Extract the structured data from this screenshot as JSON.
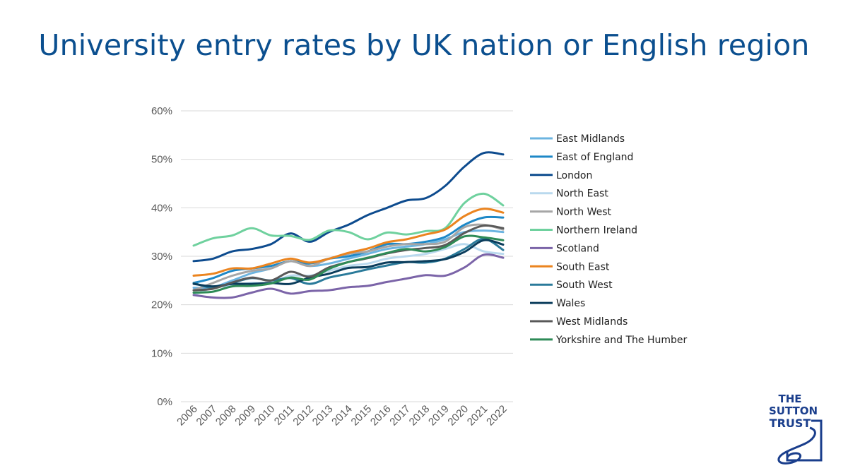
{
  "logo": {
    "line1": "THE",
    "line2": "SUTTON",
    "line3": "TRUST",
    "color": "#1a3e8c"
  },
  "chart_data": {
    "type": "line",
    "title": "University entry rates by UK nation or English region",
    "xlabel": "",
    "ylabel": "",
    "ylim": [
      0,
      60
    ],
    "yticks": [
      "0%",
      "10%",
      "20%",
      "30%",
      "40%",
      "50%",
      "60%"
    ],
    "grid": true,
    "legend_position": "right",
    "categories": [
      "2006",
      "2007",
      "2008",
      "2009",
      "2010",
      "2011",
      "2012",
      "2013",
      "2014",
      "2015",
      "2016",
      "2017",
      "2018",
      "2019",
      "2020",
      "2021",
      "2022"
    ],
    "series": [
      {
        "name": "East Midlands",
        "color": "#6cb4e0",
        "values": [
          23.5,
          23.6,
          25.0,
          26.5,
          27.5,
          29.0,
          28.0,
          28.5,
          29.5,
          30.5,
          31.5,
          32.0,
          32.5,
          33.5,
          35.0,
          35.3,
          35.0
        ]
      },
      {
        "name": "East of England",
        "color": "#1e88c7",
        "values": [
          24.5,
          25.5,
          27.0,
          27.5,
          28.0,
          29.0,
          28.5,
          29.5,
          30.0,
          31.0,
          32.5,
          32.5,
          33.0,
          34.0,
          36.5,
          38.0,
          38.0
        ]
      },
      {
        "name": "London",
        "color": "#0d4b8e",
        "values": [
          29.0,
          29.5,
          31.0,
          31.5,
          32.5,
          34.7,
          33.0,
          35.0,
          36.5,
          38.5,
          40.0,
          41.5,
          42.0,
          44.5,
          48.5,
          51.3,
          51.0
        ]
      },
      {
        "name": "North East",
        "color": "#b9d9ee",
        "values": [
          22.0,
          23.5,
          24.0,
          24.5,
          24.5,
          26.0,
          26.0,
          27.0,
          28.0,
          28.5,
          29.5,
          30.0,
          30.5,
          31.5,
          32.5,
          31.0,
          30.5
        ]
      },
      {
        "name": "North West",
        "color": "#a6a6a6",
        "values": [
          23.0,
          24.5,
          26.0,
          27.0,
          27.5,
          29.0,
          28.0,
          29.5,
          30.5,
          31.0,
          32.0,
          32.5,
          32.5,
          33.0,
          36.0,
          36.5,
          35.5
        ]
      },
      {
        "name": "Northern Ireland",
        "color": "#6fd19e",
        "values": [
          32.2,
          33.7,
          34.3,
          35.8,
          34.3,
          34.2,
          33.4,
          35.3,
          35.0,
          33.5,
          34.9,
          34.5,
          35.2,
          35.8,
          41.0,
          42.9,
          40.5
        ]
      },
      {
        "name": "Scotland",
        "color": "#7b64a8",
        "values": [
          22.0,
          21.5,
          21.5,
          22.5,
          23.3,
          22.3,
          22.8,
          23.0,
          23.6,
          23.9,
          24.7,
          25.4,
          26.1,
          26.0,
          27.7,
          30.3,
          29.7
        ]
      },
      {
        "name": "South East",
        "color": "#eb841f",
        "values": [
          26.0,
          26.4,
          27.5,
          27.5,
          28.5,
          29.5,
          28.7,
          29.5,
          30.7,
          31.6,
          32.9,
          33.5,
          34.5,
          35.5,
          38.3,
          39.8,
          39.0
        ]
      },
      {
        "name": "South West",
        "color": "#2a7a9a",
        "values": [
          24.5,
          23.5,
          24.5,
          25.5,
          25.0,
          25.5,
          24.3,
          25.6,
          26.4,
          27.3,
          28.1,
          28.8,
          28.7,
          29.5,
          31.5,
          33.6,
          31.3
        ]
      },
      {
        "name": "Wales",
        "color": "#0b3d5c",
        "values": [
          24.3,
          23.8,
          24.3,
          24.3,
          24.5,
          24.3,
          25.6,
          26.4,
          27.6,
          27.8,
          28.7,
          28.8,
          29.0,
          29.4,
          30.9,
          33.3,
          32.4
        ]
      },
      {
        "name": "West Midlands",
        "color": "#595959",
        "values": [
          23.0,
          23.3,
          24.6,
          25.6,
          25.0,
          26.8,
          25.8,
          27.7,
          28.8,
          29.6,
          30.6,
          31.3,
          31.7,
          32.3,
          34.8,
          36.3,
          35.8
        ]
      },
      {
        "name": "Yorkshire and The Humber",
        "color": "#2e8b57",
        "values": [
          22.5,
          22.7,
          23.8,
          23.9,
          24.4,
          25.6,
          25.2,
          27.4,
          28.8,
          29.7,
          30.7,
          31.5,
          31.0,
          31.9,
          34.1,
          33.9,
          33.3
        ]
      }
    ]
  }
}
